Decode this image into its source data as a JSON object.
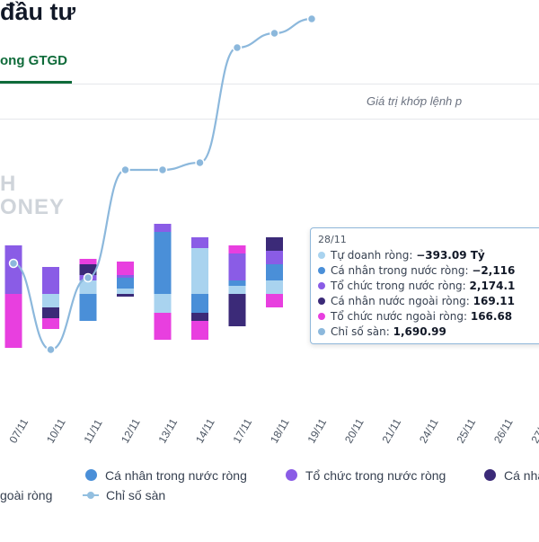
{
  "header": {
    "title": "đầu tư",
    "tab_active": "ong GTGD",
    "note": "Giá trị khớp lệnh p"
  },
  "watermark": {
    "line1": "H",
    "line2": "ONEY"
  },
  "colors": {
    "tu_doanh": "#a9d3ef",
    "ca_nhan_trong_nuoc": "#4a8fd8",
    "to_chuc_trong_nuoc": "#8a5ce6",
    "ca_nhan_nuoc_ngoai": "#3b2a78",
    "to_chuc_nuoc_ngoai": "#e83fdf",
    "chi_so_san": "#8cb8dc"
  },
  "tooltip": {
    "date": "28/11",
    "rows": [
      {
        "label": "Tự doanh ròng:",
        "value": "−393.09 Tỷ",
        "color": "#a9d3ef"
      },
      {
        "label": "Cá nhân trong nước ròng:",
        "value": "−2,116",
        "color": "#4a8fd8"
      },
      {
        "label": "Tổ chức trong nước ròng:",
        "value": "2,174.1",
        "color": "#8a5ce6"
      },
      {
        "label": "Cá nhân nước ngoài ròng:",
        "value": "169.11",
        "color": "#3b2a78"
      },
      {
        "label": "Tổ chức nước ngoài ròng:",
        "value": "166.68",
        "color": "#e83fdf"
      },
      {
        "label": "Chỉ số sàn:",
        "value": "1,690.99",
        "color": "#8cb8dc"
      }
    ]
  },
  "legend": {
    "ca_nhan_trong_nuoc": "Cá nhân trong nước ròng",
    "to_chuc_trong_nuoc": "Tổ chức trong nước ròng",
    "ca_nhan_nuoc_ngoai": "Cá nhâ",
    "to_chuc_nuoc_ngoai": "goài ròng",
    "chi_so_san": "Chỉ số sàn"
  },
  "chart_data": {
    "type": "bar",
    "categories": [
      "07/11",
      "10/11",
      "11/11",
      "12/11",
      "13/11",
      "14/11",
      "17/11",
      "18/11",
      "19/11",
      "20/11",
      "21/11",
      "24/11",
      "25/11",
      "26/11",
      "27/"
    ],
    "series": [
      {
        "name": "Tự doanh ròng",
        "values": [
          0,
          -0.5,
          0.5,
          0.2,
          -0.7,
          1.7,
          0.3,
          0.5,
          null,
          null,
          null,
          null,
          null,
          null,
          null
        ]
      },
      {
        "name": "Cá nhân trong nước ròng",
        "values": [
          0,
          0,
          -1.0,
          0.4,
          2.3,
          -0.7,
          0.2,
          0.6,
          null,
          null,
          null,
          null,
          null,
          null,
          null
        ]
      },
      {
        "name": "Tổ chức trong nước ròng",
        "values": [
          1.8,
          1.0,
          0.2,
          0.1,
          0.3,
          0.4,
          1.0,
          0.5,
          null,
          null,
          null,
          null,
          null,
          null,
          null
        ]
      },
      {
        "name": "Cá nhân nước ngoài ròng",
        "values": [
          0,
          -0.4,
          0.4,
          -0.1,
          0,
          -0.3,
          -1.2,
          0.5,
          null,
          null,
          null,
          null,
          null,
          null,
          null
        ]
      },
      {
        "name": "Tổ chức nước ngoài ròng",
        "values": [
          -2.0,
          -0.4,
          0.2,
          0.5,
          -1.0,
          -0.7,
          0.3,
          -0.5,
          null,
          null,
          null,
          null,
          null,
          null,
          null
        ]
      }
    ],
    "index_series": {
      "name": "Chỉ số sàn",
      "values": [
        1640,
        1628,
        1638,
        1653,
        1653,
        1654,
        1670,
        1672,
        1674,
        null,
        null,
        null,
        null,
        null,
        null
      ]
    }
  }
}
